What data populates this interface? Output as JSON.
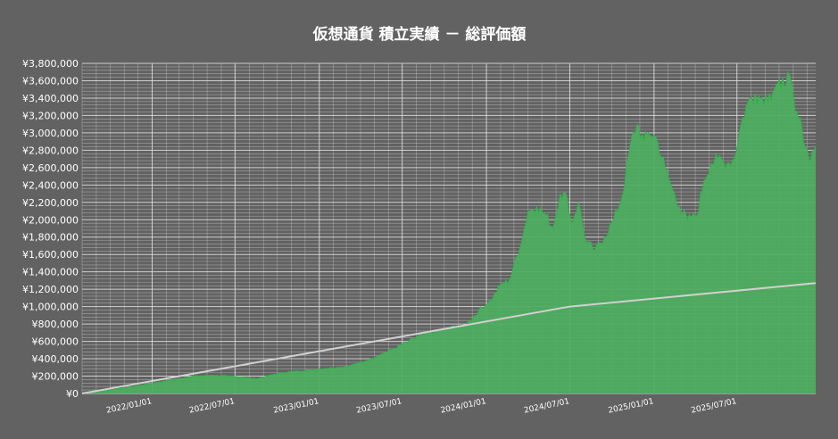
{
  "title": "仮想通貨 積立実績 － 総評価額",
  "chart_data": {
    "type": "area",
    "title": "仮想通貨 積立実績 － 総評価額",
    "xlabel": "",
    "ylabel": "",
    "ylim": [
      0,
      3800000
    ],
    "xlim": [
      "2021-08-01",
      "2025-12-20"
    ],
    "y_tick_step": 200000,
    "y_tick_labels": [
      "¥0",
      "¥200,000",
      "¥400,000",
      "¥600,000",
      "¥800,000",
      "¥1,000,000",
      "¥1,200,000",
      "¥1,400,000",
      "¥1,600,000",
      "¥1,800,000",
      "¥2,000,000",
      "¥2,200,000",
      "¥2,400,000",
      "¥2,600,000",
      "¥2,800,000",
      "¥3,000,000",
      "¥3,200,000",
      "¥3,400,000",
      "¥3,600,000",
      "¥3,800,000"
    ],
    "x_tick_labels": [
      "2022/01/01",
      "2022/07/01",
      "2023/01/01",
      "2023/07/01",
      "2024/01/01",
      "2024/07/01",
      "2025/01/01",
      "2025/07/01"
    ],
    "x_ticks": [
      "2022-01-01",
      "2022-07-01",
      "2023-01-01",
      "2023-07-01",
      "2024-01-01",
      "2024-07-01",
      "2025-01-01",
      "2025-07-01"
    ],
    "grid": true,
    "legend": "none",
    "colors": {
      "background": "#626262",
      "grid": "#dcdcdc",
      "area_fill": "#4cae5e",
      "area_line": "#33b34d",
      "invested_line": "#d0d0d0"
    },
    "series": [
      {
        "style": "area",
        "x": [
          "2021-08-01",
          "2021-10-01",
          "2021-12-01",
          "2022-01-15",
          "2022-03-01",
          "2022-04-01",
          "2022-05-15",
          "2022-06-15",
          "2022-07-15",
          "2022-08-15",
          "2022-10-01",
          "2022-11-15",
          "2022-12-15",
          "2023-01-15",
          "2023-03-01",
          "2023-04-15",
          "2023-05-15",
          "2023-06-15",
          "2023-07-15",
          "2023-08-15",
          "2023-09-15",
          "2023-10-15",
          "2023-11-15",
          "2023-12-15",
          "2024-01-15",
          "2024-02-01",
          "2024-02-20",
          "2024-03-15",
          "2024-04-01",
          "2024-04-20",
          "2024-05-10",
          "2024-05-25",
          "2024-06-10",
          "2024-06-25",
          "2024-07-05",
          "2024-07-20",
          "2024-08-05",
          "2024-08-25",
          "2024-09-15",
          "2024-10-05",
          "2024-10-25",
          "2024-11-10",
          "2024-11-25",
          "2024-12-10",
          "2024-12-20",
          "2025-01-05",
          "2025-01-25",
          "2025-02-10",
          "2025-02-25",
          "2025-03-15",
          "2025-04-05",
          "2025-04-20",
          "2025-05-05",
          "2025-05-20",
          "2025-06-10",
          "2025-06-25",
          "2025-07-10",
          "2025-07-25",
          "2025-08-10",
          "2025-08-25",
          "2025-09-10",
          "2025-09-25",
          "2025-10-05",
          "2025-10-20",
          "2025-11-05",
          "2025-11-20",
          "2025-12-05",
          "2025-12-20"
        ],
        "y": [
          0,
          40000,
          90000,
          130000,
          170000,
          200000,
          210000,
          200000,
          190000,
          170000,
          230000,
          260000,
          270000,
          290000,
          310000,
          380000,
          450000,
          520000,
          600000,
          680000,
          720000,
          760000,
          780000,
          950000,
          1100000,
          1250000,
          1300000,
          1700000,
          2100000,
          2150000,
          2050000,
          1900000,
          2300000,
          2250000,
          1950000,
          2200000,
          1750000,
          1650000,
          1800000,
          2000000,
          2300000,
          2850000,
          3100000,
          2900000,
          3000000,
          2950000,
          2600000,
          2350000,
          2150000,
          2000000,
          2050000,
          2450000,
          2650000,
          2700000,
          2650000,
          2700000,
          3100000,
          3350000,
          3450000,
          3400000,
          3450000,
          3550000,
          3500000,
          3700000,
          3250000,
          3050000,
          2700000,
          2850000
        ]
      },
      {
        "style": "line",
        "x": [
          "2021-08-01",
          "2024-07-01",
          "2025-12-20"
        ],
        "y": [
          0,
          1000000,
          1270000
        ]
      }
    ]
  }
}
